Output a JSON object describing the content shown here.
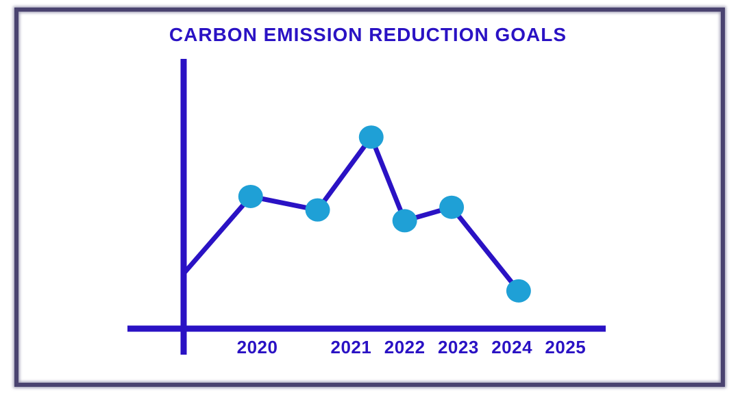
{
  "colors": {
    "frame": "#4a4370",
    "ink": "#2a12c4",
    "point": "#1fa0d6",
    "background": "#ffffff"
  },
  "chart_data": {
    "type": "line",
    "title": "CARBON EMISSION REDUCTION GOALS",
    "xlabel": "",
    "ylabel": "",
    "grid": false,
    "legend": "none",
    "tick_labels": [
      "2020",
      "2021",
      "2022",
      "2023",
      "2024",
      "2025"
    ],
    "xlim": [
      2019,
      2025.3
    ],
    "ylim": [
      0,
      100
    ],
    "series": [
      {
        "start": {
          "x": null,
          "y": 21
        },
        "points": [
          {
            "x": 2020.0,
            "y": 49
          },
          {
            "x": 2021.0,
            "y": 44
          },
          {
            "x": 2021.8,
            "y": 71
          },
          {
            "x": 2022.3,
            "y": 40
          },
          {
            "x": 2023.0,
            "y": 45
          },
          {
            "x": 2024.0,
            "y": 14
          }
        ]
      }
    ],
    "ticks": [
      {
        "label": "2020",
        "x": 2020.1
      },
      {
        "label": "2021",
        "x": 2021.5
      },
      {
        "label": "2022",
        "x": 2022.3
      },
      {
        "label": "2023",
        "x": 2023.1
      },
      {
        "label": "2024",
        "x": 2023.9
      },
      {
        "label": "2025",
        "x": 2024.7
      }
    ]
  }
}
